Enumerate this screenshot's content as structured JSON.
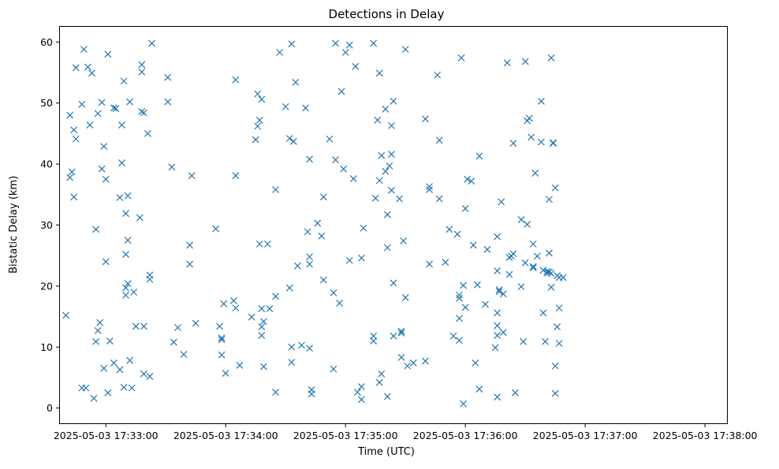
{
  "chart_data": {
    "type": "scatter",
    "title": "Detections in Delay",
    "xlabel": "Time (UTC)",
    "ylabel": "Bistatic Delay (km)",
    "marker": "x",
    "color": "#1f77b4",
    "grid": false,
    "legend": "none",
    "x_ticks": [
      "2025-05-03 17:33:00",
      "2025-05-03 17:34:00",
      "2025-05-03 17:35:00",
      "2025-05-03 17:36:00",
      "2025-05-03 17:37:00",
      "2025-05-03 17:38:00"
    ],
    "y_ticks": [
      "0",
      "10",
      "20",
      "30",
      "40",
      "50",
      "60"
    ],
    "xlim": [
      "2025-05-03 17:32:37",
      "2025-05-03 17:38:11"
    ],
    "ylim": [
      -2.5,
      62.5
    ],
    "points": [
      {
        "x": "2025-05-03 17:32:40",
        "y": 15.2
      },
      {
        "x": "2025-05-03 17:32:42",
        "y": 48
      },
      {
        "x": "2025-05-03 17:32:42",
        "y": 37.8
      },
      {
        "x": "2025-05-03 17:32:43",
        "y": 38.7
      },
      {
        "x": "2025-05-03 17:32:44",
        "y": 45.6
      },
      {
        "x": "2025-05-03 17:32:44",
        "y": 34.6
      },
      {
        "x": "2025-05-03 17:32:45",
        "y": 55.8
      },
      {
        "x": "2025-05-03 17:32:45",
        "y": 44.1
      },
      {
        "x": "2025-05-03 17:32:48",
        "y": 3.3
      },
      {
        "x": "2025-05-03 17:32:48",
        "y": 49.8
      },
      {
        "x": "2025-05-03 17:32:49",
        "y": 58.8
      },
      {
        "x": "2025-05-03 17:32:50",
        "y": 3.3
      },
      {
        "x": "2025-05-03 17:32:51",
        "y": 55.9
      },
      {
        "x": "2025-05-03 17:32:52",
        "y": 46.4
      },
      {
        "x": "2025-05-03 17:32:53",
        "y": 54.9
      },
      {
        "x": "2025-05-03 17:32:54",
        "y": 1.6
      },
      {
        "x": "2025-05-03 17:32:55",
        "y": 29.3
      },
      {
        "x": "2025-05-03 17:32:55",
        "y": 10.9
      },
      {
        "x": "2025-05-03 17:32:56",
        "y": 12.7
      },
      {
        "x": "2025-05-03 17:32:56",
        "y": 48.3
      },
      {
        "x": "2025-05-03 17:32:57",
        "y": 14
      },
      {
        "x": "2025-05-03 17:32:58",
        "y": 50.1
      },
      {
        "x": "2025-05-03 17:32:58",
        "y": 39.2
      },
      {
        "x": "2025-05-03 17:32:59",
        "y": 42.9
      },
      {
        "x": "2025-05-03 17:32:59",
        "y": 6.5
      },
      {
        "x": "2025-05-03 17:33:00",
        "y": 24
      },
      {
        "x": "2025-05-03 17:33:00",
        "y": 37.5
      },
      {
        "x": "2025-05-03 17:33:01",
        "y": 2.5
      },
      {
        "x": "2025-05-03 17:33:01",
        "y": 58
      },
      {
        "x": "2025-05-03 17:33:02",
        "y": 11
      },
      {
        "x": "2025-05-03 17:33:04",
        "y": 49.2
      },
      {
        "x": "2025-05-03 17:33:04",
        "y": 7.4
      },
      {
        "x": "2025-05-03 17:33:05",
        "y": 49.1
      },
      {
        "x": "2025-05-03 17:33:07",
        "y": 34.5
      },
      {
        "x": "2025-05-03 17:33:07",
        "y": 6.3
      },
      {
        "x": "2025-05-03 17:33:08",
        "y": 46.4
      },
      {
        "x": "2025-05-03 17:33:08",
        "y": 40.2
      },
      {
        "x": "2025-05-03 17:33:09",
        "y": 53.6
      },
      {
        "x": "2025-05-03 17:33:09",
        "y": 3.4
      },
      {
        "x": "2025-05-03 17:33:10",
        "y": 31.9
      },
      {
        "x": "2025-05-03 17:33:10",
        "y": 25.2
      },
      {
        "x": "2025-05-03 17:33:10",
        "y": 19.7
      },
      {
        "x": "2025-05-03 17:33:10",
        "y": 18.5
      },
      {
        "x": "2025-05-03 17:33:11",
        "y": 27.5
      },
      {
        "x": "2025-05-03 17:33:11",
        "y": 20.4
      },
      {
        "x": "2025-05-03 17:33:11",
        "y": 34.8
      },
      {
        "x": "2025-05-03 17:33:12",
        "y": 50.2
      },
      {
        "x": "2025-05-03 17:33:12",
        "y": 7.8
      },
      {
        "x": "2025-05-03 17:33:13",
        "y": 3.3
      },
      {
        "x": "2025-05-03 17:33:14",
        "y": 19
      },
      {
        "x": "2025-05-03 17:33:15",
        "y": 13.4
      },
      {
        "x": "2025-05-03 17:33:17",
        "y": 31.2
      },
      {
        "x": "2025-05-03 17:33:18",
        "y": 56.3
      },
      {
        "x": "2025-05-03 17:33:18",
        "y": 55.1
      },
      {
        "x": "2025-05-03 17:33:18",
        "y": 48.6
      },
      {
        "x": "2025-05-03 17:33:19",
        "y": 48.4
      },
      {
        "x": "2025-05-03 17:33:19",
        "y": 13.4
      },
      {
        "x": "2025-05-03 17:33:19",
        "y": 5.6
      },
      {
        "x": "2025-05-03 17:33:21",
        "y": 45
      },
      {
        "x": "2025-05-03 17:33:22",
        "y": 21.8
      },
      {
        "x": "2025-05-03 17:33:22",
        "y": 21.1
      },
      {
        "x": "2025-05-03 17:33:22",
        "y": 5.2
      },
      {
        "x": "2025-05-03 17:33:23",
        "y": 59.8
      },
      {
        "x": "2025-05-03 17:33:31",
        "y": 54.2
      },
      {
        "x": "2025-05-03 17:33:31",
        "y": 50.2
      },
      {
        "x": "2025-05-03 17:33:33",
        "y": 39.5
      },
      {
        "x": "2025-05-03 17:33:34",
        "y": 10.8
      },
      {
        "x": "2025-05-03 17:33:36",
        "y": 13.2
      },
      {
        "x": "2025-05-03 17:33:39",
        "y": 8.8
      },
      {
        "x": "2025-05-03 17:33:42",
        "y": 26.7
      },
      {
        "x": "2025-05-03 17:33:42",
        "y": 23.6
      },
      {
        "x": "2025-05-03 17:33:43",
        "y": 38.1
      },
      {
        "x": "2025-05-03 17:33:45",
        "y": 13.9
      },
      {
        "x": "2025-05-03 17:33:55",
        "y": 29.4
      },
      {
        "x": "2025-05-03 17:33:57",
        "y": 13.4
      },
      {
        "x": "2025-05-03 17:33:58",
        "y": 11.5
      },
      {
        "x": "2025-05-03 17:33:58",
        "y": 11.2
      },
      {
        "x": "2025-05-03 17:33:58",
        "y": 8.7
      },
      {
        "x": "2025-05-03 17:33:59",
        "y": 17.1
      },
      {
        "x": "2025-05-03 17:34:00",
        "y": 5.7
      },
      {
        "x": "2025-05-03 17:34:04",
        "y": 17.6
      },
      {
        "x": "2025-05-03 17:34:05",
        "y": 16.4
      },
      {
        "x": "2025-05-03 17:34:05",
        "y": 53.8
      },
      {
        "x": "2025-05-03 17:34:05",
        "y": 38.1
      },
      {
        "x": "2025-05-03 17:34:07",
        "y": 7
      },
      {
        "x": "2025-05-03 17:34:13",
        "y": 14.9
      },
      {
        "x": "2025-05-03 17:34:15",
        "y": 44
      },
      {
        "x": "2025-05-03 17:34:16",
        "y": 46.2
      },
      {
        "x": "2025-05-03 17:34:16",
        "y": 51.5
      },
      {
        "x": "2025-05-03 17:34:17",
        "y": 47.2
      },
      {
        "x": "2025-05-03 17:34:17",
        "y": 26.9
      },
      {
        "x": "2025-05-03 17:34:18",
        "y": 13.3
      },
      {
        "x": "2025-05-03 17:34:18",
        "y": 50.6
      },
      {
        "x": "2025-05-03 17:34:18",
        "y": 16.3
      },
      {
        "x": "2025-05-03 17:34:18",
        "y": 11.9
      },
      {
        "x": "2025-05-03 17:34:19",
        "y": 14.2
      },
      {
        "x": "2025-05-03 17:34:19",
        "y": 6.8
      },
      {
        "x": "2025-05-03 17:34:21",
        "y": 26.9
      },
      {
        "x": "2025-05-03 17:34:22",
        "y": 16.3
      },
      {
        "x": "2025-05-03 17:34:25",
        "y": 18.3
      },
      {
        "x": "2025-05-03 17:34:25",
        "y": 35.8
      },
      {
        "x": "2025-05-03 17:34:25",
        "y": 2.6
      },
      {
        "x": "2025-05-03 17:34:27",
        "y": 58.3
      },
      {
        "x": "2025-05-03 17:34:30",
        "y": 49.4
      },
      {
        "x": "2025-05-03 17:34:32",
        "y": 44.2
      },
      {
        "x": "2025-05-03 17:34:32",
        "y": 19.7
      },
      {
        "x": "2025-05-03 17:34:33",
        "y": 10
      },
      {
        "x": "2025-05-03 17:34:33",
        "y": 7.5
      },
      {
        "x": "2025-05-03 17:34:33",
        "y": 59.7
      },
      {
        "x": "2025-05-03 17:34:34",
        "y": 43.7
      },
      {
        "x": "2025-05-03 17:34:35",
        "y": 53.4
      },
      {
        "x": "2025-05-03 17:34:36",
        "y": 23.3
      },
      {
        "x": "2025-05-03 17:34:38",
        "y": 10.3
      },
      {
        "x": "2025-05-03 17:34:40",
        "y": 49.2
      },
      {
        "x": "2025-05-03 17:34:41",
        "y": 28.9
      },
      {
        "x": "2025-05-03 17:34:42",
        "y": 40.8
      },
      {
        "x": "2025-05-03 17:34:42",
        "y": 24.8
      },
      {
        "x": "2025-05-03 17:34:42",
        "y": 23.6
      },
      {
        "x": "2025-05-03 17:34:42",
        "y": 9.8
      },
      {
        "x": "2025-05-03 17:34:43",
        "y": 3
      },
      {
        "x": "2025-05-03 17:34:43",
        "y": 2.3
      },
      {
        "x": "2025-05-03 17:34:46",
        "y": 30.3
      },
      {
        "x": "2025-05-03 17:34:48",
        "y": 28.2
      },
      {
        "x": "2025-05-03 17:34:49",
        "y": 34.6
      },
      {
        "x": "2025-05-03 17:34:49",
        "y": 21
      },
      {
        "x": "2025-05-03 17:34:52",
        "y": 44.1
      },
      {
        "x": "2025-05-03 17:34:54",
        "y": 18.9
      },
      {
        "x": "2025-05-03 17:34:54",
        "y": 6.4
      },
      {
        "x": "2025-05-03 17:34:55",
        "y": 40.7
      },
      {
        "x": "2025-05-03 17:34:55",
        "y": 59.8
      },
      {
        "x": "2025-05-03 17:34:57",
        "y": 17.2
      },
      {
        "x": "2025-05-03 17:34:58",
        "y": 51.9
      },
      {
        "x": "2025-05-03 17:34:59",
        "y": 39.2
      },
      {
        "x": "2025-05-03 17:35:00",
        "y": 58.3
      },
      {
        "x": "2025-05-03 17:35:02",
        "y": 24.2
      },
      {
        "x": "2025-05-03 17:35:02",
        "y": 59.5
      },
      {
        "x": "2025-05-03 17:35:04",
        "y": 37.6
      },
      {
        "x": "2025-05-03 17:35:05",
        "y": 56
      },
      {
        "x": "2025-05-03 17:35:06",
        "y": 2.6
      },
      {
        "x": "2025-05-03 17:35:08",
        "y": 1.4
      },
      {
        "x": "2025-05-03 17:35:08",
        "y": 3.5
      },
      {
        "x": "2025-05-03 17:35:08",
        "y": 24.6
      },
      {
        "x": "2025-05-03 17:35:09",
        "y": 29.5
      },
      {
        "x": "2025-05-03 17:35:14",
        "y": 11.8
      },
      {
        "x": "2025-05-03 17:35:14",
        "y": 11
      },
      {
        "x": "2025-05-03 17:35:14",
        "y": 59.8
      },
      {
        "x": "2025-05-03 17:35:15",
        "y": 34.4
      },
      {
        "x": "2025-05-03 17:35:16",
        "y": 47.2
      },
      {
        "x": "2025-05-03 17:35:17",
        "y": 4.2
      },
      {
        "x": "2025-05-03 17:35:17",
        "y": 54.9
      },
      {
        "x": "2025-05-03 17:35:17",
        "y": 37.3
      },
      {
        "x": "2025-05-03 17:35:18",
        "y": 41.4
      },
      {
        "x": "2025-05-03 17:35:18",
        "y": 5.6
      },
      {
        "x": "2025-05-03 17:35:20",
        "y": 49
      },
      {
        "x": "2025-05-03 17:35:20",
        "y": 38.8
      },
      {
        "x": "2025-05-03 17:35:21",
        "y": 31.7
      },
      {
        "x": "2025-05-03 17:35:21",
        "y": 26.3
      },
      {
        "x": "2025-05-03 17:35:21",
        "y": 1.9
      },
      {
        "x": "2025-05-03 17:35:22",
        "y": 39.7
      },
      {
        "x": "2025-05-03 17:35:23",
        "y": 35.7
      },
      {
        "x": "2025-05-03 17:35:23",
        "y": 46.3
      },
      {
        "x": "2025-05-03 17:35:23",
        "y": 41.6
      },
      {
        "x": "2025-05-03 17:35:24",
        "y": 11.8
      },
      {
        "x": "2025-05-03 17:35:24",
        "y": 50.3
      },
      {
        "x": "2025-05-03 17:35:24",
        "y": 20.5
      },
      {
        "x": "2025-05-03 17:35:27",
        "y": 34.3
      },
      {
        "x": "2025-05-03 17:35:28",
        "y": 8.3
      },
      {
        "x": "2025-05-03 17:35:28",
        "y": 12.6
      },
      {
        "x": "2025-05-03 17:35:28",
        "y": 12.3
      },
      {
        "x": "2025-05-03 17:35:29",
        "y": 27.4
      },
      {
        "x": "2025-05-03 17:35:30",
        "y": 18.1
      },
      {
        "x": "2025-05-03 17:35:30",
        "y": 58.8
      },
      {
        "x": "2025-05-03 17:35:31",
        "y": 6.9
      },
      {
        "x": "2025-05-03 17:35:34",
        "y": 7.4
      },
      {
        "x": "2025-05-03 17:35:40",
        "y": 47.4
      },
      {
        "x": "2025-05-03 17:35:40",
        "y": 7.7
      },
      {
        "x": "2025-05-03 17:35:42",
        "y": 35.8
      },
      {
        "x": "2025-05-03 17:35:42",
        "y": 36.3
      },
      {
        "x": "2025-05-03 17:35:42",
        "y": 23.6
      },
      {
        "x": "2025-05-03 17:35:46",
        "y": 54.6
      },
      {
        "x": "2025-05-03 17:35:47",
        "y": 43.9
      },
      {
        "x": "2025-05-03 17:35:47",
        "y": 34.3
      },
      {
        "x": "2025-05-03 17:35:50",
        "y": 23.9
      },
      {
        "x": "2025-05-03 17:35:52",
        "y": 29.3
      },
      {
        "x": "2025-05-03 17:35:54",
        "y": 11.8
      },
      {
        "x": "2025-05-03 17:35:56",
        "y": 28.5
      },
      {
        "x": "2025-05-03 17:35:57",
        "y": 18.5
      },
      {
        "x": "2025-05-03 17:35:57",
        "y": 18
      },
      {
        "x": "2025-05-03 17:35:57",
        "y": 14.7
      },
      {
        "x": "2025-05-03 17:35:57",
        "y": 11.1
      },
      {
        "x": "2025-05-03 17:35:58",
        "y": 57.4
      },
      {
        "x": "2025-05-03 17:35:59",
        "y": 0.7
      },
      {
        "x": "2025-05-03 17:35:59",
        "y": 20.1
      },
      {
        "x": "2025-05-03 17:36:00",
        "y": 16.5
      },
      {
        "x": "2025-05-03 17:36:00",
        "y": 32.7
      },
      {
        "x": "2025-05-03 17:36:01",
        "y": 37.5
      },
      {
        "x": "2025-05-03 17:36:03",
        "y": 37.2
      },
      {
        "x": "2025-05-03 17:36:04",
        "y": 26.7
      },
      {
        "x": "2025-05-03 17:36:05",
        "y": 7.4
      },
      {
        "x": "2025-05-03 17:36:06",
        "y": 20.2
      },
      {
        "x": "2025-05-03 17:36:07",
        "y": 41.3
      },
      {
        "x": "2025-05-03 17:36:07",
        "y": 3.1
      },
      {
        "x": "2025-05-03 17:36:10",
        "y": 17
      },
      {
        "x": "2025-05-03 17:36:11",
        "y": 26
      },
      {
        "x": "2025-05-03 17:36:15",
        "y": 9.9
      },
      {
        "x": "2025-05-03 17:36:16",
        "y": 28.1
      },
      {
        "x": "2025-05-03 17:36:16",
        "y": 22.5
      },
      {
        "x": "2025-05-03 17:36:16",
        "y": 15.6
      },
      {
        "x": "2025-05-03 17:36:16",
        "y": 13.5
      },
      {
        "x": "2025-05-03 17:36:16",
        "y": 11.9
      },
      {
        "x": "2025-05-03 17:36:16",
        "y": 1.8
      },
      {
        "x": "2025-05-03 17:36:17",
        "y": 19.4
      },
      {
        "x": "2025-05-03 17:36:17",
        "y": 19.1
      },
      {
        "x": "2025-05-03 17:36:18",
        "y": 33.8
      },
      {
        "x": "2025-05-03 17:36:19",
        "y": 18.7
      },
      {
        "x": "2025-05-03 17:36:19",
        "y": 12.4
      },
      {
        "x": "2025-05-03 17:36:21",
        "y": 56.6
      },
      {
        "x": "2025-05-03 17:36:22",
        "y": 21.9
      },
      {
        "x": "2025-05-03 17:36:22",
        "y": 24.7
      },
      {
        "x": "2025-05-03 17:36:23",
        "y": 24.9
      },
      {
        "x": "2025-05-03 17:36:24",
        "y": 25.3
      },
      {
        "x": "2025-05-03 17:36:24",
        "y": 43.4
      },
      {
        "x": "2025-05-03 17:36:25",
        "y": 2.5
      },
      {
        "x": "2025-05-03 17:36:28",
        "y": 19.9
      },
      {
        "x": "2025-05-03 17:36:28",
        "y": 30.9
      },
      {
        "x": "2025-05-03 17:36:29",
        "y": 10.9
      },
      {
        "x": "2025-05-03 17:36:30",
        "y": 23.8
      },
      {
        "x": "2025-05-03 17:36:30",
        "y": 56.8
      },
      {
        "x": "2025-05-03 17:36:31",
        "y": 47.1
      },
      {
        "x": "2025-05-03 17:36:31",
        "y": 30.1
      },
      {
        "x": "2025-05-03 17:36:32",
        "y": 47.5
      },
      {
        "x": "2025-05-03 17:36:33",
        "y": 44.4
      },
      {
        "x": "2025-05-03 17:36:34",
        "y": 26.9
      },
      {
        "x": "2025-05-03 17:36:34",
        "y": 23.2
      },
      {
        "x": "2025-05-03 17:36:34",
        "y": 23
      },
      {
        "x": "2025-05-03 17:36:35",
        "y": 38.5
      },
      {
        "x": "2025-05-03 17:36:36",
        "y": 24.9
      },
      {
        "x": "2025-05-03 17:36:38",
        "y": 50.3
      },
      {
        "x": "2025-05-03 17:36:38",
        "y": 43.6
      },
      {
        "x": "2025-05-03 17:36:39",
        "y": 22.6
      },
      {
        "x": "2025-05-03 17:36:39",
        "y": 15.6
      },
      {
        "x": "2025-05-03 17:36:40",
        "y": 10.9
      },
      {
        "x": "2025-05-03 17:36:41",
        "y": 22.1
      },
      {
        "x": "2025-05-03 17:36:41",
        "y": 22.4
      },
      {
        "x": "2025-05-03 17:36:42",
        "y": 22.3
      },
      {
        "x": "2025-05-03 17:36:42",
        "y": 34.2
      },
      {
        "x": "2025-05-03 17:36:42",
        "y": 25.4
      },
      {
        "x": "2025-05-03 17:36:43",
        "y": 57.4
      },
      {
        "x": "2025-05-03 17:36:43",
        "y": 22.1
      },
      {
        "x": "2025-05-03 17:36:43",
        "y": 19.8
      },
      {
        "x": "2025-05-03 17:36:44",
        "y": 43.5
      },
      {
        "x": "2025-05-03 17:36:44",
        "y": 43.4
      },
      {
        "x": "2025-05-03 17:36:45",
        "y": 36.1
      },
      {
        "x": "2025-05-03 17:36:45",
        "y": 6.9
      },
      {
        "x": "2025-05-03 17:36:45",
        "y": 2.4
      },
      {
        "x": "2025-05-03 17:36:46",
        "y": 13.3
      },
      {
        "x": "2025-05-03 17:36:46",
        "y": 21.7
      },
      {
        "x": "2025-05-03 17:36:47",
        "y": 21.4
      },
      {
        "x": "2025-05-03 17:36:47",
        "y": 10.6
      },
      {
        "x": "2025-05-03 17:36:47",
        "y": 16.4
      },
      {
        "x": "2025-05-03 17:36:49",
        "y": 21.4
      }
    ]
  }
}
